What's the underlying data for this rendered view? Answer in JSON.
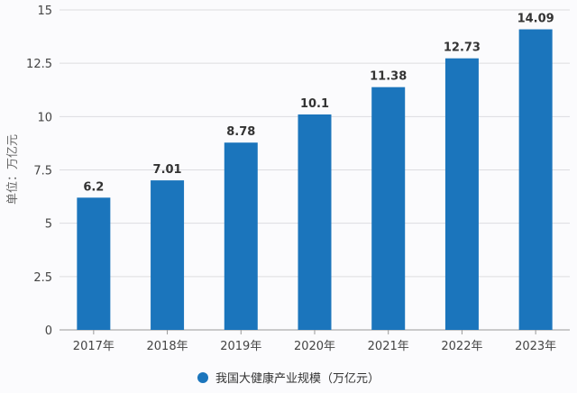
{
  "chart_data": {
    "type": "bar",
    "categories": [
      "2017年",
      "2018年",
      "2019年",
      "2020年",
      "2021年",
      "2022年",
      "2023年"
    ],
    "series": [
      {
        "name": "我国大健康产业规模（万亿元）",
        "values": [
          6.2,
          7.01,
          8.78,
          10.1,
          11.38,
          12.73,
          14.09
        ]
      }
    ],
    "value_labels": [
      "6.2",
      "7.01",
      "8.78",
      "10.1",
      "11.38",
      "12.73",
      "14.09"
    ],
    "ylabel": "单位：万亿元",
    "ylim": [
      0,
      15
    ],
    "yticks": [
      0,
      2.5,
      5,
      7.5,
      10,
      12.5,
      15
    ],
    "ytick_labels": [
      "0",
      "2.5",
      "5",
      "7.5",
      "10",
      "12.5",
      "15"
    ],
    "grid": true,
    "legend_position": "bottom",
    "bar_color": "#1b75bc"
  }
}
